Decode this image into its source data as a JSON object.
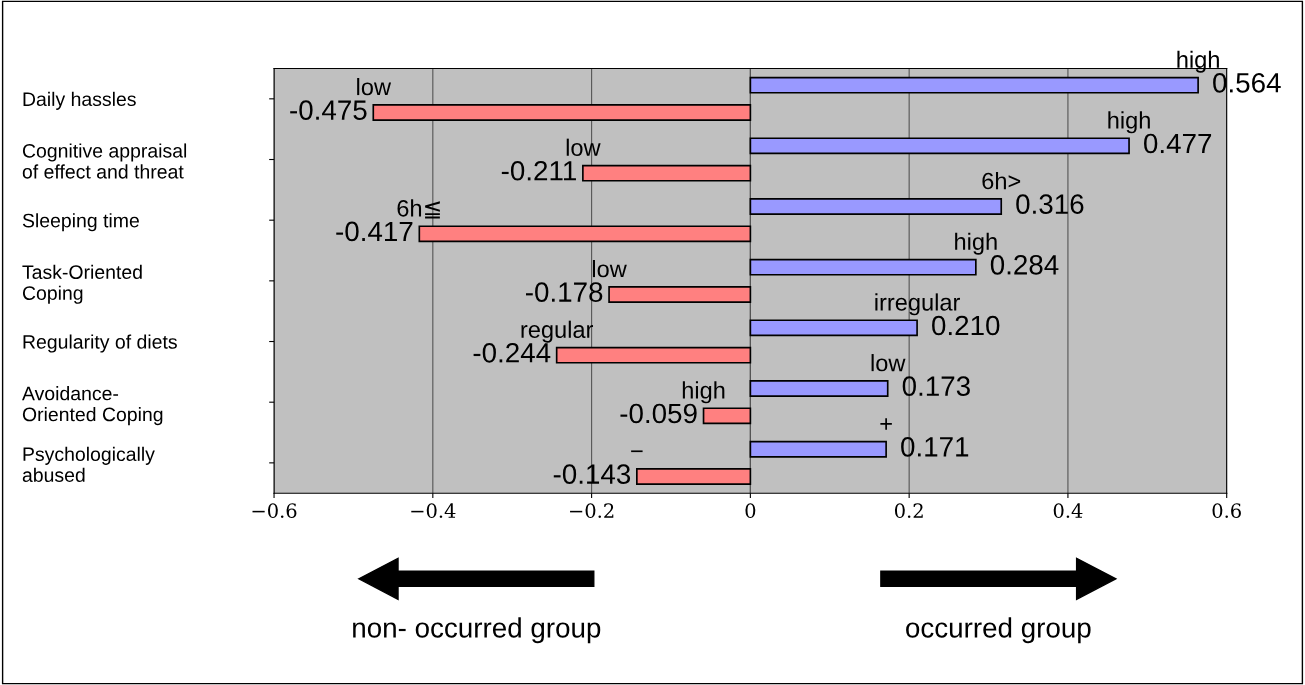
{
  "chart_data": {
    "type": "bar",
    "orientation": "horizontal",
    "categories": [
      "Daily hassles",
      "Cognitive appraisal\nof effect and threat",
      "Sleeping time",
      "Task-Oriented\nCoping",
      "Regularity of diets",
      "Avoidance-\nOriented Coping",
      "Psychologically\nabused"
    ],
    "series": [
      {
        "color": "#9999ff",
        "values": [
          0.564,
          0.477,
          0.316,
          0.284,
          0.21,
          0.173,
          0.171
        ],
        "value_labels": [
          "0.564",
          "0.477",
          "0.316",
          "0.284",
          "0.210",
          "0.173",
          "0.171"
        ]
      },
      {
        "color": "#ff8080",
        "values": [
          -0.475,
          -0.211,
          -0.417,
          -0.178,
          -0.244,
          -0.059,
          -0.143
        ],
        "value_labels": [
          "-0.475",
          "-0.211",
          "-0.417",
          "-0.178",
          "-0.244",
          "-0.059",
          "-0.143"
        ]
      }
    ],
    "xlim": [
      -0.6,
      0.6
    ],
    "xticks": [
      {
        "value": -0.6,
        "label": "−0.6"
      },
      {
        "value": -0.4,
        "label": "−0.4"
      },
      {
        "value": -0.2,
        "label": "−0.2"
      },
      0,
      0.2,
      0.4,
      0.6
    ],
    "grid": "x",
    "annotations": [
      "high",
      "low",
      "high",
      "low",
      "6h>",
      "6h≦",
      "high",
      "low",
      "irregular",
      "regular",
      "low",
      "high",
      "+",
      "−",
      "non- occurred group",
      "occurred group"
    ]
  }
}
